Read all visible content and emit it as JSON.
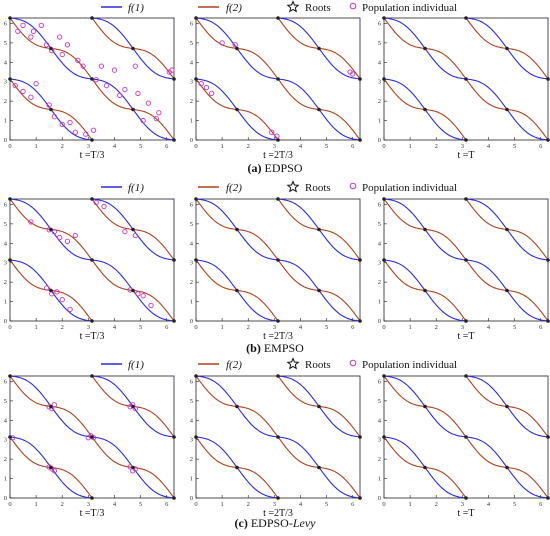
{
  "legend": {
    "f1_label": "f(1)",
    "f2_label": "f(2)",
    "roots_label": "Roots",
    "population_label": "Population individual",
    "roots_symbol": "☆",
    "population_symbol": "○"
  },
  "colors": {
    "f1": "#2a2ae0",
    "f2": "#b0401a",
    "root": "#222222",
    "population": "#cc33cc",
    "axis": "#222222"
  },
  "captions": [
    {
      "letter": "(a)",
      "name": "EDPSO",
      "italic": ""
    },
    {
      "letter": "(b)",
      "name": "EMPSO",
      "italic": ""
    },
    {
      "letter": "(c)",
      "name": "EDPSO-",
      "italic": "Levy"
    }
  ],
  "chart_data": [
    {
      "type": "line",
      "method": "EDPSO",
      "xlabel": "t =T/3",
      "xlim": [
        0,
        6.28
      ],
      "ylim": [
        0,
        6.28
      ],
      "xticks": [
        0,
        1,
        2,
        3,
        4,
        5,
        6
      ],
      "yticks": [
        0,
        1,
        2,
        3,
        4,
        5,
        6
      ],
      "series": [
        {
          "name": "f(1)"
        },
        {
          "name": "f(2)"
        }
      ],
      "roots": [
        [
          0,
          3.14
        ],
        [
          0,
          6.28
        ],
        [
          1.57,
          1.57
        ],
        [
          1.57,
          4.71
        ],
        [
          3.14,
          0
        ],
        [
          3.14,
          3.14
        ],
        [
          3.14,
          6.28
        ],
        [
          4.71,
          1.57
        ],
        [
          4.71,
          4.71
        ],
        [
          6.28,
          0
        ],
        [
          6.28,
          3.14
        ]
      ],
      "population": [
        [
          0.3,
          5.6
        ],
        [
          0.5,
          5.9
        ],
        [
          0.8,
          5.3
        ],
        [
          0.9,
          5.6
        ],
        [
          1.4,
          4.9
        ],
        [
          1.6,
          4.6
        ],
        [
          2.0,
          4.4
        ],
        [
          2.2,
          4.9
        ],
        [
          1.9,
          5.3
        ],
        [
          2.8,
          3.8
        ],
        [
          3.3,
          3.1
        ],
        [
          3.7,
          2.8
        ],
        [
          4.2,
          2.3
        ],
        [
          4.4,
          2.6
        ],
        [
          4.9,
          2.4
        ],
        [
          5.3,
          1.9
        ],
        [
          5.7,
          1.4
        ],
        [
          6.2,
          3.6
        ],
        [
          6.1,
          3.5
        ],
        [
          0.2,
          2.8
        ],
        [
          0.5,
          2.5
        ],
        [
          0.8,
          2.2
        ],
        [
          1.0,
          2.9
        ],
        [
          1.5,
          1.8
        ],
        [
          1.7,
          1.2
        ],
        [
          2.0,
          0.8
        ],
        [
          2.3,
          0.9
        ],
        [
          2.5,
          0.4
        ],
        [
          2.9,
          0.3
        ],
        [
          3.2,
          0.5
        ],
        [
          3.5,
          3.8
        ],
        [
          4.0,
          3.6
        ],
        [
          4.8,
          3.8
        ],
        [
          5.1,
          1.0
        ],
        [
          5.6,
          1.1
        ],
        [
          1.2,
          5.9
        ],
        [
          2.6,
          4.1
        ]
      ]
    },
    {
      "type": "line",
      "method": "EDPSO",
      "xlabel": "t =2T/3",
      "xlim": [
        0,
        6.28
      ],
      "ylim": [
        0,
        6.28
      ],
      "xticks": [
        0,
        1,
        2,
        3,
        4,
        5,
        6
      ],
      "yticks": [
        0,
        1,
        2,
        3,
        4,
        5,
        6
      ],
      "series": [
        {
          "name": "f(1)"
        },
        {
          "name": "f(2)"
        }
      ],
      "roots": [
        [
          0,
          3.14
        ],
        [
          0,
          6.28
        ],
        [
          1.57,
          1.57
        ],
        [
          1.57,
          4.71
        ],
        [
          3.14,
          0
        ],
        [
          3.14,
          3.14
        ],
        [
          3.14,
          6.28
        ],
        [
          4.71,
          1.57
        ],
        [
          4.71,
          4.71
        ],
        [
          6.28,
          0
        ],
        [
          6.28,
          3.14
        ]
      ],
      "population": [
        [
          0.4,
          2.7
        ],
        [
          0.6,
          2.4
        ],
        [
          1.0,
          5.0
        ],
        [
          1.5,
          4.9
        ],
        [
          2.9,
          0.4
        ],
        [
          3.1,
          0.2
        ],
        [
          5.9,
          3.5
        ],
        [
          6.0,
          3.4
        ],
        [
          0.2,
          2.9
        ]
      ]
    },
    {
      "type": "line",
      "method": "EDPSO",
      "xlabel": "t =T",
      "xlim": [
        0,
        6.28
      ],
      "ylim": [
        0,
        6.28
      ],
      "xticks": [
        0,
        1,
        2,
        3,
        4,
        5,
        6
      ],
      "yticks": [
        0,
        1,
        2,
        3,
        4,
        5,
        6
      ],
      "series": [
        {
          "name": "f(1)"
        },
        {
          "name": "f(2)"
        }
      ],
      "roots": [
        [
          0,
          3.14
        ],
        [
          0,
          6.28
        ],
        [
          1.57,
          1.57
        ],
        [
          1.57,
          4.71
        ],
        [
          3.14,
          0
        ],
        [
          3.14,
          3.14
        ],
        [
          3.14,
          6.28
        ],
        [
          4.71,
          1.57
        ],
        [
          4.71,
          4.71
        ],
        [
          6.28,
          0
        ],
        [
          6.28,
          3.14
        ]
      ],
      "population": []
    },
    {
      "type": "line",
      "method": "EMPSO",
      "xlabel": "t =T/3",
      "xlim": [
        0,
        6.28
      ],
      "ylim": [
        0,
        6.28
      ],
      "xticks": [
        0,
        1,
        2,
        3,
        4,
        5,
        6
      ],
      "yticks": [
        0,
        1,
        2,
        3,
        4,
        5,
        6
      ],
      "series": [
        {
          "name": "f(1)"
        },
        {
          "name": "f(2)"
        }
      ],
      "roots": [
        [
          0,
          3.14
        ],
        [
          0,
          6.28
        ],
        [
          1.57,
          1.57
        ],
        [
          1.57,
          4.71
        ],
        [
          3.14,
          0
        ],
        [
          3.14,
          3.14
        ],
        [
          3.14,
          6.28
        ],
        [
          4.71,
          1.57
        ],
        [
          4.71,
          4.71
        ],
        [
          6.28,
          0
        ],
        [
          6.28,
          3.14
        ]
      ],
      "population": [
        [
          1.5,
          4.7
        ],
        [
          1.7,
          4.6
        ],
        [
          1.9,
          4.3
        ],
        [
          2.2,
          4.1
        ],
        [
          2.5,
          4.4
        ],
        [
          3.3,
          6.1
        ],
        [
          3.6,
          5.9
        ],
        [
          4.4,
          4.6
        ],
        [
          4.8,
          4.4
        ],
        [
          1.4,
          1.7
        ],
        [
          1.6,
          1.4
        ],
        [
          1.8,
          1.5
        ],
        [
          2.0,
          1.1
        ],
        [
          2.3,
          0.6
        ],
        [
          4.6,
          1.6
        ],
        [
          4.9,
          1.4
        ],
        [
          5.1,
          1.3
        ],
        [
          5.4,
          0.8
        ],
        [
          0.8,
          5.1
        ]
      ]
    },
    {
      "type": "line",
      "method": "EMPSO",
      "xlabel": "t =2T/3",
      "xlim": [
        0,
        6.28
      ],
      "ylim": [
        0,
        6.28
      ],
      "xticks": [
        0,
        1,
        2,
        3,
        4,
        5,
        6
      ],
      "yticks": [
        0,
        1,
        2,
        3,
        4,
        5,
        6
      ],
      "series": [
        {
          "name": "f(1)"
        },
        {
          "name": "f(2)"
        }
      ],
      "roots": [
        [
          0,
          3.14
        ],
        [
          0,
          6.28
        ],
        [
          1.57,
          1.57
        ],
        [
          1.57,
          4.71
        ],
        [
          3.14,
          0
        ],
        [
          3.14,
          3.14
        ],
        [
          3.14,
          6.28
        ],
        [
          4.71,
          1.57
        ],
        [
          4.71,
          4.71
        ],
        [
          6.28,
          0
        ],
        [
          6.28,
          3.14
        ]
      ],
      "population": []
    },
    {
      "type": "line",
      "method": "EMPSO",
      "xlabel": "t =T",
      "xlim": [
        0,
        6.28
      ],
      "ylim": [
        0,
        6.28
      ],
      "xticks": [
        0,
        1,
        2,
        3,
        4,
        5,
        6
      ],
      "yticks": [
        0,
        1,
        2,
        3,
        4,
        5,
        6
      ],
      "series": [
        {
          "name": "f(1)"
        },
        {
          "name": "f(2)"
        }
      ],
      "roots": [
        [
          0,
          3.14
        ],
        [
          0,
          6.28
        ],
        [
          1.57,
          1.57
        ],
        [
          1.57,
          4.71
        ],
        [
          3.14,
          0
        ],
        [
          3.14,
          3.14
        ],
        [
          3.14,
          6.28
        ],
        [
          4.71,
          1.57
        ],
        [
          4.71,
          4.71
        ],
        [
          6.28,
          0
        ],
        [
          6.28,
          3.14
        ]
      ],
      "population": []
    },
    {
      "type": "line",
      "method": "EDPSO-Levy",
      "xlabel": "t =T/3",
      "xlim": [
        0,
        6.28
      ],
      "ylim": [
        0,
        6.28
      ],
      "xticks": [
        0,
        1,
        2,
        3,
        4,
        5,
        6
      ],
      "yticks": [
        0,
        1,
        2,
        3,
        4,
        5,
        6
      ],
      "series": [
        {
          "name": "f(1)"
        },
        {
          "name": "f(2)"
        }
      ],
      "roots": [
        [
          0,
          3.14
        ],
        [
          0,
          6.28
        ],
        [
          1.57,
          1.57
        ],
        [
          1.57,
          4.71
        ],
        [
          3.14,
          0
        ],
        [
          3.14,
          3.14
        ],
        [
          3.14,
          6.28
        ],
        [
          4.71,
          1.57
        ],
        [
          4.71,
          4.71
        ],
        [
          6.28,
          0
        ],
        [
          6.28,
          3.14
        ]
      ],
      "population": [
        [
          1.5,
          4.7
        ],
        [
          1.6,
          4.6
        ],
        [
          1.7,
          4.8
        ],
        [
          1.5,
          1.6
        ],
        [
          1.6,
          1.5
        ],
        [
          1.7,
          1.4
        ],
        [
          3.1,
          3.2
        ],
        [
          3.2,
          3.1
        ],
        [
          4.6,
          4.7
        ],
        [
          4.8,
          4.6
        ],
        [
          4.7,
          4.8
        ],
        [
          4.6,
          1.6
        ],
        [
          4.8,
          1.5
        ],
        [
          4.7,
          1.4
        ],
        [
          3.0,
          3.1
        ],
        [
          0.1,
          3.1
        ]
      ]
    },
    {
      "type": "line",
      "method": "EDPSO-Levy",
      "xlabel": "t =2T/3",
      "xlim": [
        0,
        6.28
      ],
      "ylim": [
        0,
        6.28
      ],
      "xticks": [
        0,
        1,
        2,
        3,
        4,
        5,
        6
      ],
      "yticks": [
        0,
        1,
        2,
        3,
        4,
        5,
        6
      ],
      "series": [
        {
          "name": "f(1)"
        },
        {
          "name": "f(2)"
        }
      ],
      "roots": [
        [
          0,
          3.14
        ],
        [
          0,
          6.28
        ],
        [
          1.57,
          1.57
        ],
        [
          1.57,
          4.71
        ],
        [
          3.14,
          0
        ],
        [
          3.14,
          3.14
        ],
        [
          3.14,
          6.28
        ],
        [
          4.71,
          1.57
        ],
        [
          4.71,
          4.71
        ],
        [
          6.28,
          0
        ],
        [
          6.28,
          3.14
        ]
      ],
      "population": []
    },
    {
      "type": "line",
      "method": "EDPSO-Levy",
      "xlabel": "t =T",
      "xlim": [
        0,
        6.28
      ],
      "ylim": [
        0,
        6.28
      ],
      "xticks": [
        0,
        1,
        2,
        3,
        4,
        5,
        6
      ],
      "yticks": [
        0,
        1,
        2,
        3,
        4,
        5,
        6
      ],
      "series": [
        {
          "name": "f(1)"
        },
        {
          "name": "f(2)"
        }
      ],
      "roots": [
        [
          0,
          3.14
        ],
        [
          0,
          6.28
        ],
        [
          1.57,
          1.57
        ],
        [
          1.57,
          4.71
        ],
        [
          3.14,
          0
        ],
        [
          3.14,
          3.14
        ],
        [
          3.14,
          6.28
        ],
        [
          4.71,
          1.57
        ],
        [
          4.71,
          4.71
        ],
        [
          6.28,
          0
        ],
        [
          6.28,
          3.14
        ]
      ],
      "population": []
    }
  ]
}
